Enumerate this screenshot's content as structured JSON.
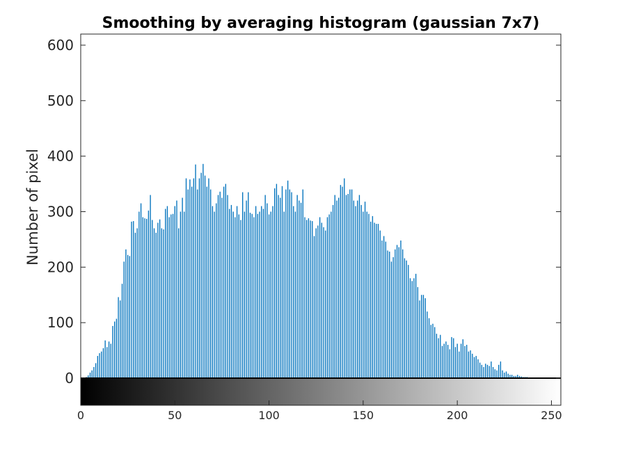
{
  "chart_data": {
    "type": "bar",
    "title": "Smoothing by averaging histogram (gaussian 7x7)",
    "xlabel": "",
    "ylabel": "Number of pixel",
    "xlim": [
      0,
      255
    ],
    "ylim": [
      0,
      620
    ],
    "yticks": [
      0,
      100,
      200,
      300,
      400,
      500,
      600
    ],
    "xticks": [
      0,
      50,
      100,
      150,
      200,
      250
    ],
    "bar_color": "#0072bd",
    "grid": false,
    "colorbar": "grayscale gradient 0 (black) to 255 (white) below x-axis",
    "series": [
      {
        "x_start": 0,
        "values": [
          0,
          0,
          0,
          2,
          5,
          10,
          14,
          20,
          27,
          40,
          45,
          48,
          54,
          68,
          56,
          66,
          62,
          94,
          102,
          107,
          146,
          140,
          170,
          210,
          232,
          222,
          220,
          282,
          283,
          262,
          270,
          300,
          315,
          290,
          288,
          287,
          302,
          330,
          285,
          270,
          262,
          280,
          286,
          270,
          268,
          305,
          310,
          290,
          295,
          296,
          310,
          320,
          270,
          300,
          325,
          300,
          360,
          340,
          358,
          345,
          360,
          385,
          340,
          360,
          370,
          386,
          365,
          345,
          360,
          340,
          310,
          300,
          315,
          330,
          336,
          325,
          345,
          350,
          330,
          305,
          312,
          300,
          290,
          310,
          295,
          285,
          335,
          300,
          320,
          335,
          298,
          296,
          290,
          310,
          296,
          300,
          310,
          305,
          330,
          315,
          295,
          300,
          310,
          342,
          350,
          330,
          325,
          346,
          300,
          340,
          356,
          340,
          335,
          310,
          300,
          330,
          320,
          316,
          340,
          290,
          285,
          288,
          284,
          283,
          256,
          270,
          275,
          290,
          280,
          272,
          266,
          290,
          295,
          300,
          312,
          330,
          320,
          325,
          348,
          345,
          360,
          330,
          332,
          340,
          340,
          320,
          310,
          320,
          330,
          312,
          300,
          318,
          300,
          296,
          282,
          292,
          280,
          278,
          278,
          266,
          248,
          256,
          246,
          230,
          228,
          210,
          218,
          232,
          240,
          236,
          248,
          232,
          216,
          212,
          204,
          180,
          175,
          180,
          188,
          164,
          140,
          150,
          150,
          144,
          120,
          108,
          96,
          98,
          92,
          80,
          72,
          78,
          58,
          62,
          66,
          60,
          52,
          74,
          72,
          56,
          62,
          48,
          62,
          70,
          58,
          60,
          48,
          50,
          44,
          38,
          40,
          34,
          28,
          24,
          20,
          26,
          24,
          22,
          30,
          20,
          16,
          14,
          24,
          30,
          14,
          10,
          12,
          8,
          6,
          6,
          4,
          4,
          6,
          4,
          3,
          2,
          2,
          2,
          0,
          0,
          0,
          0,
          0,
          0,
          0,
          0,
          0,
          0,
          0,
          0
        ]
      }
    ]
  }
}
